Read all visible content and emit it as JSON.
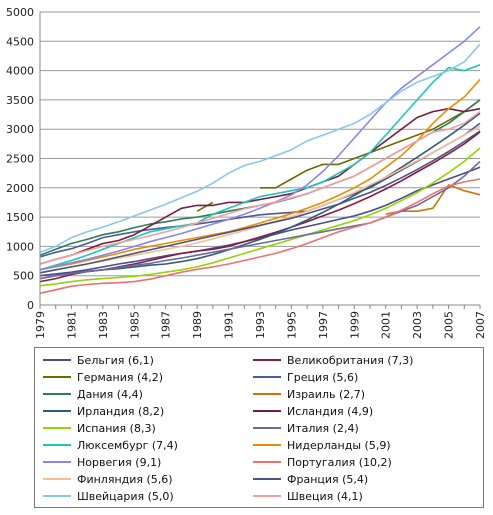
{
  "chart_data": {
    "type": "line",
    "x": [
      1979,
      1980,
      1981,
      1982,
      1983,
      1984,
      1985,
      1986,
      1987,
      1988,
      1989,
      1990,
      1991,
      1992,
      1993,
      1994,
      1995,
      1996,
      1997,
      1998,
      1999,
      2000,
      2001,
      2002,
      2003,
      2004,
      2005,
      2006,
      2007
    ],
    "ylim": [
      0,
      5000
    ],
    "yticks": [
      0,
      500,
      1000,
      1500,
      2000,
      2500,
      3000,
      3500,
      4000,
      4500,
      5000
    ],
    "xticks": [
      1979,
      1981,
      1983,
      1985,
      1987,
      1989,
      1991,
      1993,
      1995,
      1997,
      1999,
      2001,
      2003,
      2005,
      2007
    ],
    "grid": "horizontal",
    "legend_position": "bottom",
    "series": [
      {
        "name": "Бельгия (6,1)",
        "color": "#4b4b8c",
        "values": [
          500,
          530,
          560,
          600,
          650,
          700,
          740,
          790,
          840,
          880,
          920,
          970,
          1020,
          1080,
          1140,
          1210,
          1280,
          1340,
          1400,
          1460,
          1520,
          1600,
          1700,
          1820,
          1950,
          2050,
          2150,
          2250,
          2350
        ]
      },
      {
        "name": "Великобритания (7,3)",
        "color": "#8c1a3c",
        "values": [
          400,
          450,
          520,
          570,
          600,
          650,
          700,
          760,
          820,
          880,
          920,
          950,
          1000,
          1080,
          1160,
          1240,
          1330,
          1420,
          1520,
          1620,
          1730,
          1850,
          1980,
          2120,
          2270,
          2420,
          2580,
          2750,
          2950
        ]
      },
      {
        "name": "Германия (4,2)",
        "color": "#6b6b00",
        "values": [
          null,
          null,
          null,
          null,
          null,
          null,
          null,
          null,
          null,
          null,
          1600,
          1750,
          null,
          null,
          2000,
          2000,
          2150,
          2300,
          2400,
          2400,
          2500,
          2600,
          2700,
          2800,
          2900,
          3000,
          3150,
          3300,
          3500
        ]
      },
      {
        "name": "Греция (5,6)",
        "color": "#4b5b9c",
        "values": [
          820,
          900,
          960,
          1050,
          1150,
          1200,
          1250,
          1290,
          1320,
          1350,
          1380,
          1420,
          1460,
          1500,
          1540,
          1560,
          1580,
          1600,
          1700,
          1800,
          1900,
          2000,
          2150,
          2300,
          2450,
          2600,
          2750,
          2900,
          3100
        ]
      },
      {
        "name": "Дания (4,4)",
        "color": "#2e7d5a",
        "values": [
          850,
          950,
          1050,
          1120,
          1200,
          1250,
          1320,
          1380,
          1420,
          1470,
          1500,
          1550,
          1600,
          1650,
          1700,
          1750,
          1820,
          1900,
          2000,
          2100,
          2200,
          2350,
          2500,
          2650,
          2800,
          2950,
          3100,
          3300,
          3500
        ]
      },
      {
        "name": "Израиль (2,7)",
        "color": "#d4700a",
        "values": [
          null,
          null,
          null,
          null,
          null,
          null,
          null,
          null,
          null,
          null,
          null,
          null,
          null,
          null,
          null,
          null,
          null,
          null,
          null,
          null,
          null,
          null,
          1550,
          1600,
          1600,
          1650,
          2050,
          1950,
          1880
        ]
      },
      {
        "name": "Ирландия (8,2)",
        "color": "#2c5e7a",
        "values": [
          450,
          500,
          550,
          570,
          600,
          620,
          650,
          680,
          700,
          740,
          790,
          860,
          940,
          1030,
          1120,
          1220,
          1330,
          1450,
          1580,
          1720,
          1870,
          2020,
          2180,
          2350,
          2520,
          2700,
          2880,
          3070,
          3270
        ]
      },
      {
        "name": "Исландия (4,9)",
        "color": "#7a1a3c",
        "values": [
          700,
          780,
          850,
          950,
          1050,
          1100,
          1200,
          1350,
          1500,
          1650,
          1700,
          1700,
          1750,
          1750,
          1800,
          1850,
          1900,
          2000,
          2100,
          2200,
          2400,
          2600,
          2800,
          3000,
          3200,
          3300,
          3350,
          3300,
          3350
        ]
      },
      {
        "name": "Испания (8,3)",
        "color": "#8fd700",
        "values": [
          330,
          360,
          400,
          430,
          450,
          470,
          490,
          520,
          560,
          600,
          650,
          720,
          800,
          880,
          960,
          1040,
          1120,
          1200,
          1280,
          1360,
          1440,
          1540,
          1650,
          1780,
          1920,
          2080,
          2260,
          2450,
          2680
        ]
      },
      {
        "name": "Италия (2,4)",
        "color": "#6a6a9e",
        "values": [
          450,
          500,
          540,
          570,
          600,
          640,
          680,
          710,
          760,
          800,
          850,
          900,
          950,
          1000,
          1050,
          1100,
          1150,
          1200,
          1250,
          1300,
          1350,
          1400,
          1500,
          1600,
          1700,
          1850,
          2000,
          2200,
          2450
        ]
      },
      {
        "name": "Люксембург (7,4)",
        "color": "#1cc8b0",
        "values": [
          600,
          680,
          760,
          850,
          950,
          1050,
          1150,
          1250,
          1300,
          1350,
          1400,
          1550,
          1650,
          1750,
          1850,
          1900,
          1950,
          2000,
          2100,
          2250,
          2400,
          2600,
          2900,
          3200,
          3500,
          3800,
          4050,
          4000,
          4100
        ]
      },
      {
        "name": "Нидерланды (5,9)",
        "color": "#f28a00",
        "values": [
          600,
          650,
          700,
          760,
          820,
          880,
          950,
          1000,
          1050,
          1100,
          1150,
          1200,
          1250,
          1320,
          1400,
          1480,
          1560,
          1650,
          1750,
          1870,
          2000,
          2150,
          2350,
          2550,
          2800,
          3100,
          3350,
          3550,
          3850
        ]
      },
      {
        "name": "Норвегия (9,1)",
        "color": "#8888e8",
        "values": [
          600,
          660,
          720,
          780,
          850,
          920,
          1000,
          1080,
          1150,
          1220,
          1300,
          1380,
          1460,
          1550,
          1650,
          1760,
          1880,
          2050,
          2280,
          2550,
          2850,
          3150,
          3450,
          3700,
          3900,
          4100,
          4300,
          4500,
          4750
        ]
      },
      {
        "name": "Португалия (10,2)",
        "color": "#f07070",
        "values": [
          200,
          260,
          320,
          350,
          370,
          380,
          400,
          440,
          500,
          560,
          610,
          650,
          700,
          760,
          820,
          880,
          960,
          1050,
          1150,
          1250,
          1330,
          1400,
          1500,
          1620,
          1750,
          1900,
          2030,
          2100,
          2150
        ]
      },
      {
        "name": "Финляндия (5,6)",
        "color": "#f5c090",
        "values": [
          550,
          600,
          650,
          700,
          750,
          800,
          850,
          900,
          950,
          1000,
          1060,
          1130,
          1200,
          1270,
          1350,
          1430,
          1510,
          1600,
          1700,
          1800,
          1920,
          2050,
          2180,
          2320,
          2460,
          2600,
          2750,
          2900,
          3050
        ]
      },
      {
        "name": "Франция (5,4)",
        "color": "#4b5580",
        "values": [
          550,
          600,
          650,
          700,
          760,
          820,
          880,
          940,
          1000,
          1060,
          1120,
          1180,
          1240,
          1300,
          1360,
          1420,
          1480,
          1560,
          1640,
          1720,
          1820,
          1920,
          2040,
          2170,
          2310,
          2460,
          2620,
          2790,
          2970
        ]
      },
      {
        "name": "Швейцария (5,0)",
        "color": "#88c8f0",
        "values": [
          900,
          1000,
          1150,
          1250,
          1330,
          1420,
          1520,
          1620,
          1720,
          1830,
          1940,
          2080,
          2250,
          2380,
          2450,
          2550,
          2650,
          2800,
          2900,
          3000,
          3100,
          3250,
          3450,
          3650,
          3800,
          3900,
          4000,
          4150,
          4450
        ]
      },
      {
        "name": "Швеция (4,1)",
        "color": "#f4a0a0",
        "values": [
          700,
          780,
          850,
          930,
          1000,
          1060,
          1120,
          1180,
          1250,
          1320,
          1400,
          1480,
          1560,
          1640,
          1700,
          1760,
          1830,
          1900,
          2000,
          2100,
          2200,
          2350,
          2500,
          2650,
          2800,
          2950,
          3000,
          3100,
          3300
        ]
      }
    ]
  }
}
